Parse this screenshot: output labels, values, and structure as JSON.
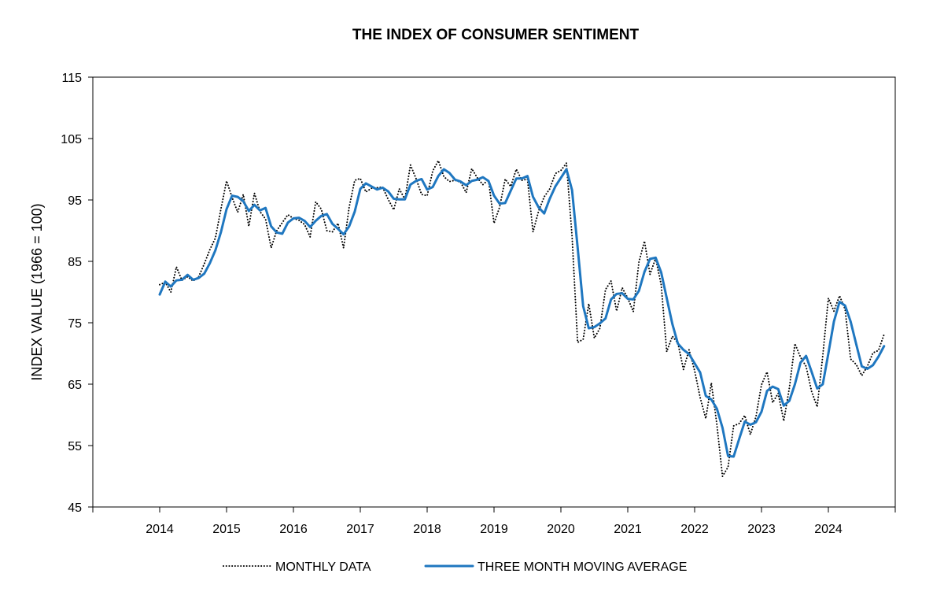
{
  "chart_data": {
    "type": "line",
    "title": "THE INDEX OF CONSUMER SENTIMENT",
    "ylabel": "INDEX VALUE (1966 = 100)",
    "xlabel": "",
    "ylim": [
      45,
      115
    ],
    "xlim": [
      2013.0,
      2025.0
    ],
    "y_ticks": [
      45,
      55,
      65,
      75,
      85,
      95,
      105,
      115
    ],
    "x_ticks": [
      2014,
      2015,
      2016,
      2017,
      2018,
      2019,
      2020,
      2021,
      2022,
      2023,
      2024
    ],
    "grid": false,
    "legend_position": "bottom",
    "series": [
      {
        "name": "MONTHLY DATA",
        "style": "dotted",
        "color": "#000000",
        "x": [
          2014.0,
          2014.083,
          2014.167,
          2014.25,
          2014.333,
          2014.417,
          2014.5,
          2014.583,
          2014.667,
          2014.75,
          2014.833,
          2014.917,
          2015.0,
          2015.083,
          2015.167,
          2015.25,
          2015.333,
          2015.417,
          2015.5,
          2015.583,
          2015.667,
          2015.75,
          2015.833,
          2015.917,
          2016.0,
          2016.083,
          2016.167,
          2016.25,
          2016.333,
          2016.417,
          2016.5,
          2016.583,
          2016.667,
          2016.75,
          2016.833,
          2016.917,
          2017.0,
          2017.083,
          2017.167,
          2017.25,
          2017.333,
          2017.417,
          2017.5,
          2017.583,
          2017.667,
          2017.75,
          2017.833,
          2017.917,
          2018.0,
          2018.083,
          2018.167,
          2018.25,
          2018.333,
          2018.417,
          2018.5,
          2018.583,
          2018.667,
          2018.75,
          2018.833,
          2018.917,
          2019.0,
          2019.083,
          2019.167,
          2019.25,
          2019.333,
          2019.417,
          2019.5,
          2019.583,
          2019.667,
          2019.75,
          2019.833,
          2019.917,
          2020.0,
          2020.083,
          2020.167,
          2020.25,
          2020.333,
          2020.417,
          2020.5,
          2020.583,
          2020.667,
          2020.75,
          2020.833,
          2020.917,
          2021.0,
          2021.083,
          2021.167,
          2021.25,
          2021.333,
          2021.417,
          2021.5,
          2021.583,
          2021.667,
          2021.75,
          2021.833,
          2021.917,
          2022.0,
          2022.083,
          2022.167,
          2022.25,
          2022.333,
          2022.417,
          2022.5,
          2022.583,
          2022.667,
          2022.75,
          2022.833,
          2022.917,
          2023.0,
          2023.083,
          2023.167,
          2023.25,
          2023.333,
          2023.417,
          2023.5,
          2023.583,
          2023.667,
          2023.75,
          2023.833,
          2023.917,
          2024.0,
          2024.083,
          2024.167,
          2024.25,
          2024.333,
          2024.417,
          2024.5,
          2024.583,
          2024.667,
          2024.75,
          2024.833
        ],
        "values": [
          81.2,
          81.6,
          80.0,
          84.1,
          81.9,
          82.5,
          81.8,
          82.5,
          84.6,
          86.9,
          88.8,
          93.6,
          98.1,
          95.4,
          93.0,
          95.9,
          90.7,
          96.1,
          93.1,
          91.9,
          87.2,
          90.0,
          91.3,
          92.6,
          92.0,
          91.7,
          91.0,
          89.0,
          94.7,
          93.5,
          90.0,
          89.8,
          91.2,
          87.2,
          93.8,
          98.2,
          98.5,
          96.3,
          96.9,
          97.0,
          97.1,
          95.1,
          93.4,
          96.8,
          95.1,
          100.7,
          98.5,
          95.9,
          95.7,
          99.7,
          101.4,
          98.8,
          98.0,
          98.2,
          97.9,
          96.2,
          100.1,
          98.6,
          97.5,
          98.3,
          91.2,
          93.8,
          98.4,
          97.2,
          100.0,
          98.2,
          98.4,
          89.8,
          93.2,
          95.5,
          96.8,
          99.3,
          99.8,
          101.0,
          89.1,
          71.8,
          72.3,
          78.1,
          72.5,
          74.1,
          80.4,
          81.8,
          76.9,
          80.7,
          79.0,
          76.8,
          84.9,
          88.3,
          82.9,
          85.5,
          81.2,
          70.3,
          72.8,
          71.7,
          67.4,
          70.6,
          67.2,
          62.8,
          59.4,
          65.2,
          58.4,
          50.0,
          51.5,
          58.2,
          58.6,
          59.9,
          56.8,
          59.7,
          64.9,
          67.0,
          62.0,
          63.5,
          59.0,
          64.4,
          71.6,
          69.4,
          67.9,
          63.8,
          61.3,
          69.7,
          79.0,
          76.9,
          79.4,
          77.2,
          69.1,
          68.2,
          66.4,
          67.9,
          70.1,
          70.5,
          73.1
        ]
      },
      {
        "name": "THREE MONTH MOVING AVERAGE",
        "style": "solid",
        "color": "#1f77c0",
        "x": [
          2014.0,
          2014.083,
          2014.167,
          2014.25,
          2014.333,
          2014.417,
          2014.5,
          2014.583,
          2014.667,
          2014.75,
          2014.833,
          2014.917,
          2015.0,
          2015.083,
          2015.167,
          2015.25,
          2015.333,
          2015.417,
          2015.5,
          2015.583,
          2015.667,
          2015.75,
          2015.833,
          2015.917,
          2016.0,
          2016.083,
          2016.167,
          2016.25,
          2016.333,
          2016.417,
          2016.5,
          2016.583,
          2016.667,
          2016.75,
          2016.833,
          2016.917,
          2017.0,
          2017.083,
          2017.167,
          2017.25,
          2017.333,
          2017.417,
          2017.5,
          2017.583,
          2017.667,
          2017.75,
          2017.833,
          2017.917,
          2018.0,
          2018.083,
          2018.167,
          2018.25,
          2018.333,
          2018.417,
          2018.5,
          2018.583,
          2018.667,
          2018.75,
          2018.833,
          2018.917,
          2019.0,
          2019.083,
          2019.167,
          2019.25,
          2019.333,
          2019.417,
          2019.5,
          2019.583,
          2019.667,
          2019.75,
          2019.833,
          2019.917,
          2020.0,
          2020.083,
          2020.167,
          2020.25,
          2020.333,
          2020.417,
          2020.5,
          2020.583,
          2020.667,
          2020.75,
          2020.833,
          2020.917,
          2021.0,
          2021.083,
          2021.167,
          2021.25,
          2021.333,
          2021.417,
          2021.5,
          2021.583,
          2021.667,
          2021.75,
          2021.833,
          2021.917,
          2022.0,
          2022.083,
          2022.167,
          2022.25,
          2022.333,
          2022.417,
          2022.5,
          2022.583,
          2022.667,
          2022.75,
          2022.833,
          2022.917,
          2023.0,
          2023.083,
          2023.167,
          2023.25,
          2023.333,
          2023.417,
          2023.5,
          2023.583,
          2023.667,
          2023.75,
          2023.833,
          2023.917,
          2024.0,
          2024.083,
          2024.167,
          2024.25,
          2024.333,
          2024.417,
          2024.5,
          2024.583,
          2024.667,
          2024.75,
          2024.833
        ],
        "values": [
          79.6,
          81.7,
          80.9,
          81.9,
          82.0,
          82.8,
          82.0,
          82.3,
          83.0,
          84.7,
          86.8,
          89.8,
          93.5,
          95.7,
          95.5,
          94.8,
          93.2,
          94.2,
          93.3,
          93.7,
          90.7,
          89.7,
          89.5,
          91.3,
          92.0,
          92.1,
          91.6,
          90.6,
          91.6,
          92.4,
          92.7,
          91.1,
          90.3,
          89.4,
          90.7,
          93.1,
          96.8,
          97.7,
          97.2,
          96.7,
          97.0,
          96.4,
          95.2,
          95.1,
          95.1,
          97.5,
          98.1,
          98.4,
          96.7,
          97.1,
          98.9,
          100.0,
          99.4,
          98.3,
          98.0,
          97.4,
          98.1,
          98.3,
          98.7,
          98.1,
          95.7,
          94.4,
          94.5,
          96.5,
          98.5,
          98.5,
          98.9,
          95.5,
          93.8,
          92.8,
          95.2,
          97.2,
          98.6,
          100.0,
          96.6,
          87.3,
          77.7,
          74.1,
          74.3,
          74.9,
          75.7,
          78.8,
          79.7,
          79.8,
          78.9,
          78.8,
          80.2,
          83.3,
          85.4,
          85.6,
          83.2,
          79.0,
          74.8,
          71.6,
          70.6,
          69.9,
          68.4,
          66.9,
          63.1,
          62.5,
          61.0,
          57.9,
          53.3,
          53.2,
          56.1,
          58.9,
          58.4,
          58.8,
          60.5,
          63.9,
          64.6,
          64.2,
          61.5,
          62.3,
          65.0,
          68.5,
          69.6,
          67.0,
          64.3,
          65.0,
          70.0,
          75.2,
          78.4,
          77.8,
          75.2,
          71.5,
          67.9,
          67.5,
          68.1,
          69.5,
          71.2
        ]
      }
    ]
  }
}
